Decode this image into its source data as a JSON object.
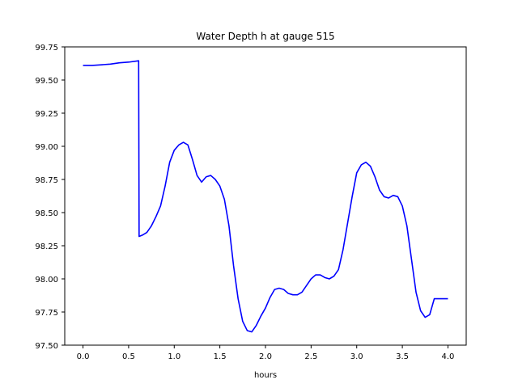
{
  "chart_data": {
    "type": "line",
    "title": "Water Depth h at gauge 515",
    "xlabel": "hours",
    "ylabel": "",
    "xlim": [
      -0.2,
      4.2
    ],
    "ylim": [
      97.5,
      99.75
    ],
    "xticks": [
      0.0,
      0.5,
      1.0,
      1.5,
      2.0,
      2.5,
      3.0,
      3.5,
      4.0
    ],
    "xtick_labels": [
      "0.0",
      "0.5",
      "1.0",
      "1.5",
      "2.0",
      "2.5",
      "3.0",
      "3.5",
      "4.0"
    ],
    "yticks": [
      97.5,
      97.75,
      98.0,
      98.25,
      98.5,
      98.75,
      99.0,
      99.25,
      99.5,
      99.75
    ],
    "ytick_labels": [
      "97.50",
      "97.75",
      "98.00",
      "98.25",
      "98.50",
      "98.75",
      "99.00",
      "99.25",
      "99.50",
      "99.75"
    ],
    "grid": false,
    "series": [
      {
        "color": "#0000ff",
        "x": [
          0.0,
          0.1,
          0.2,
          0.3,
          0.4,
          0.5,
          0.61,
          0.615,
          0.65,
          0.7,
          0.75,
          0.8,
          0.85,
          0.9,
          0.95,
          1.0,
          1.05,
          1.1,
          1.15,
          1.2,
          1.25,
          1.3,
          1.35,
          1.4,
          1.45,
          1.5,
          1.55,
          1.6,
          1.65,
          1.7,
          1.75,
          1.8,
          1.85,
          1.9,
          1.95,
          2.0,
          2.05,
          2.1,
          2.15,
          2.2,
          2.25,
          2.3,
          2.35,
          2.4,
          2.45,
          2.5,
          2.55,
          2.6,
          2.65,
          2.7,
          2.75,
          2.8,
          2.85,
          2.9,
          2.95,
          3.0,
          3.05,
          3.1,
          3.15,
          3.2,
          3.25,
          3.3,
          3.35,
          3.4,
          3.45,
          3.5,
          3.55,
          3.6,
          3.65,
          3.7,
          3.75,
          3.8,
          3.85,
          3.9,
          3.95,
          4.0
        ],
        "y": [
          99.61,
          99.61,
          99.615,
          99.62,
          99.63,
          99.635,
          99.645,
          98.32,
          98.33,
          98.35,
          98.4,
          98.47,
          98.55,
          98.7,
          98.88,
          98.97,
          99.01,
          99.03,
          99.01,
          98.9,
          98.78,
          98.73,
          98.77,
          98.78,
          98.75,
          98.7,
          98.6,
          98.4,
          98.1,
          97.85,
          97.68,
          97.61,
          97.6,
          97.65,
          97.72,
          97.78,
          97.86,
          97.92,
          97.93,
          97.92,
          97.89,
          97.88,
          97.88,
          97.9,
          97.95,
          98.0,
          98.03,
          98.03,
          98.01,
          98.0,
          98.02,
          98.07,
          98.22,
          98.42,
          98.62,
          98.8,
          98.86,
          98.88,
          98.85,
          98.77,
          98.67,
          98.62,
          98.61,
          98.63,
          98.62,
          98.55,
          98.4,
          98.15,
          97.9,
          97.76,
          97.71,
          97.73,
          97.85,
          97.85,
          97.85,
          97.85
        ]
      }
    ]
  }
}
